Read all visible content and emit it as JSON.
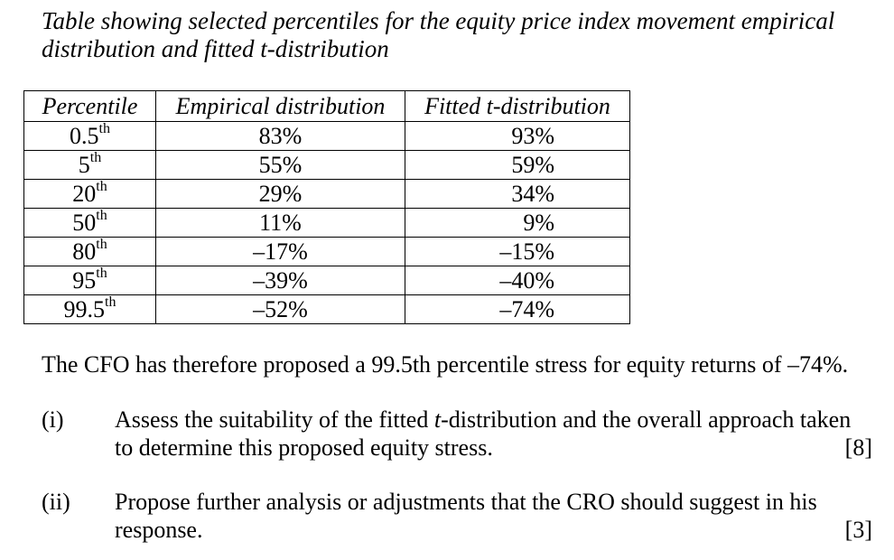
{
  "caption_line1": "Table showing selected percentiles for the equity price index movement empirical",
  "caption_line2": "distribution and fitted t-distribution",
  "table": {
    "headers": [
      "Percentile",
      "Empirical distribution",
      "Fitted t-distribution"
    ],
    "rows": [
      {
        "pct": "0.5",
        "suffix": "th",
        "empirical": "83%",
        "fitted": "93%"
      },
      {
        "pct": "5",
        "suffix": "th",
        "empirical": "55%",
        "fitted": "59%"
      },
      {
        "pct": "20",
        "suffix": "th",
        "empirical": "29%",
        "fitted": "34%"
      },
      {
        "pct": "50",
        "suffix": "th",
        "empirical": "11%",
        "fitted": "9%"
      },
      {
        "pct": "80",
        "suffix": "th",
        "empirical": "–17%",
        "fitted": "–15%"
      },
      {
        "pct": "95",
        "suffix": "th",
        "empirical": "–39%",
        "fitted": "–40%"
      },
      {
        "pct": "99.5",
        "suffix": "th",
        "empirical": "–52%",
        "fitted": "–74%"
      }
    ]
  },
  "statement": "The CFO has therefore proposed a 99.5th percentile stress for equity returns of –74%.",
  "questions": [
    {
      "label": "(i)",
      "pre": "Assess the suitability of the fitted ",
      "em": "t",
      "post": "-distribution and the overall approach taken",
      "line2": "to determine this proposed equity stress.",
      "marks": "[8]"
    },
    {
      "label": "(ii)",
      "line1": "Propose further analysis or adjustments that the CRO should suggest in his",
      "line2": "response.",
      "marks": "[3]"
    }
  ]
}
